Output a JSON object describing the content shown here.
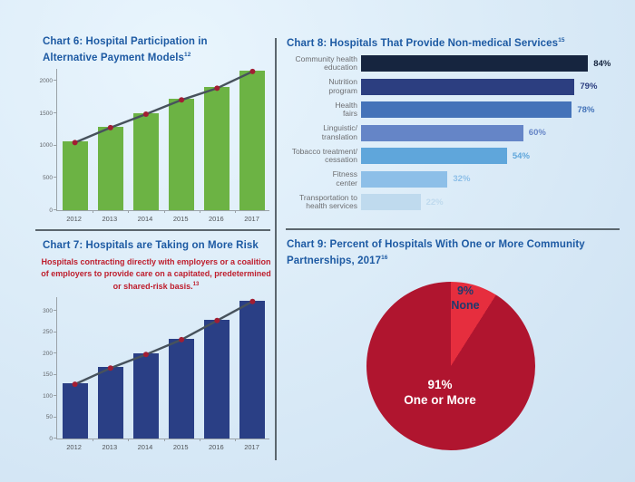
{
  "colors": {
    "title_blue": "#1d5aa3",
    "subtitle_red": "#be1e2d",
    "divider": "#5b666e",
    "axis_gray": "#9aa2a8",
    "tick_text": "#63676b",
    "bar_label_gray": "#6d6e71"
  },
  "chart_data": [
    {
      "id": "chart6",
      "type": "bar",
      "title": "Chart 6: Hospital Participation in Alternative Payment Models",
      "footnote_sup": "12",
      "categories": [
        "2012",
        "2013",
        "2014",
        "2015",
        "2016",
        "2017"
      ],
      "values": [
        1060,
        1290,
        1500,
        1720,
        1900,
        2160
      ],
      "yticks": [
        0,
        500,
        1000,
        1500,
        2000
      ],
      "ylim": [
        0,
        2200
      ],
      "bar_color": "#6cb344",
      "trend_line": true,
      "trend_color": "#47525c",
      "marker_color": "#a21e33",
      "legend": "none",
      "grid": false
    },
    {
      "id": "chart7",
      "type": "bar",
      "title": "Chart 7: Hospitals are Taking on More Risk",
      "subtitle": "Hospitals contracting directly with employers or a coalition of employers to provide care on a capitated, predetermined or shared-risk basis.",
      "subtitle_sup": "13",
      "categories": [
        "2012",
        "2013",
        "2014",
        "2015",
        "2016",
        "2017"
      ],
      "values": [
        130,
        168,
        200,
        235,
        280,
        325
      ],
      "yticks": [
        0,
        50,
        100,
        150,
        200,
        250,
        300
      ],
      "ylim": [
        0,
        335
      ],
      "bar_color": "#2a3f85",
      "trend_line": true,
      "trend_color": "#47525c",
      "marker_color": "#a21e33",
      "legend": "none",
      "grid": false
    },
    {
      "id": "chart8",
      "type": "bar",
      "orientation": "horizontal",
      "title": "Chart 8: Hospitals That Provide Non-medical Services",
      "footnote_sup": "15",
      "xlim": [
        0,
        100
      ],
      "rows": [
        {
          "label": "Community health\neducation",
          "value": 84,
          "value_text": "84%",
          "color": "#16253f"
        },
        {
          "label": "Nutrition\nprogram",
          "value": 79,
          "value_text": "79%",
          "color": "#2c3e80"
        },
        {
          "label": "Health\nfairs",
          "value": 78,
          "value_text": "78%",
          "color": "#4473b9"
        },
        {
          "label": "Linguistic/\ntranslation",
          "value": 60,
          "value_text": "60%",
          "color": "#6585c7"
        },
        {
          "label": "Tobacco treatment/\ncessation",
          "value": 54,
          "value_text": "54%",
          "color": "#5fa6db"
        },
        {
          "label": "Fitness\ncenter",
          "value": 32,
          "value_text": "32%",
          "color": "#8dbfe8"
        },
        {
          "label": "Transportation to\nhealth services",
          "value": 22,
          "value_text": "22%",
          "color": "#bfdaee"
        }
      ]
    },
    {
      "id": "chart9",
      "type": "pie",
      "title": "Chart 9: Percent of Hospitals With One or More Community Partnerships, 2017",
      "footnote_sup": "16",
      "start_angle_deg": 0,
      "slices": [
        {
          "label": "None",
          "pct": 9,
          "pct_text": "9%",
          "color": "#e62e3e",
          "text_color": "#1e3a6e"
        },
        {
          "label": "One or More",
          "pct": 91,
          "pct_text": "91%",
          "color": "#b0152f",
          "text_color": "#ffffff"
        }
      ]
    }
  ]
}
